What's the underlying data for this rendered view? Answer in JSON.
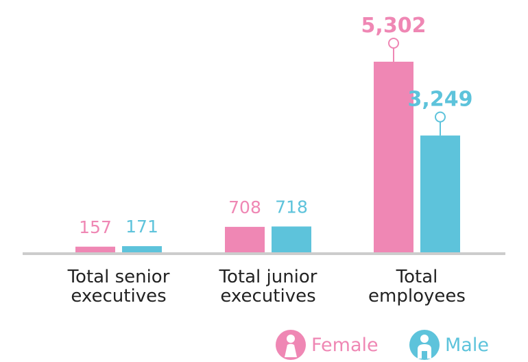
{
  "chart_data": {
    "type": "bar",
    "categories": [
      "Total senior\nexecutives",
      "Total junior\nexecutives",
      "Total\nemployees"
    ],
    "series": [
      {
        "name": "Female",
        "values": [
          157,
          708,
          5302
        ],
        "labels": [
          "157",
          "708",
          "5,302"
        ]
      },
      {
        "name": "Male",
        "values": [
          171,
          718,
          3249
        ],
        "labels": [
          "171",
          "718",
          "3,249"
        ]
      }
    ],
    "ylim": [
      0,
      5302
    ],
    "grid": false,
    "legend": "bottom-right"
  },
  "colors": {
    "female": "#ef87b4",
    "male": "#5dc3db",
    "axis": "#cccccc",
    "text": "#222222"
  },
  "legend": {
    "female": {
      "label": "Female",
      "icon": "female-person-icon"
    },
    "male": {
      "label": "Male",
      "icon": "male-person-icon"
    }
  }
}
